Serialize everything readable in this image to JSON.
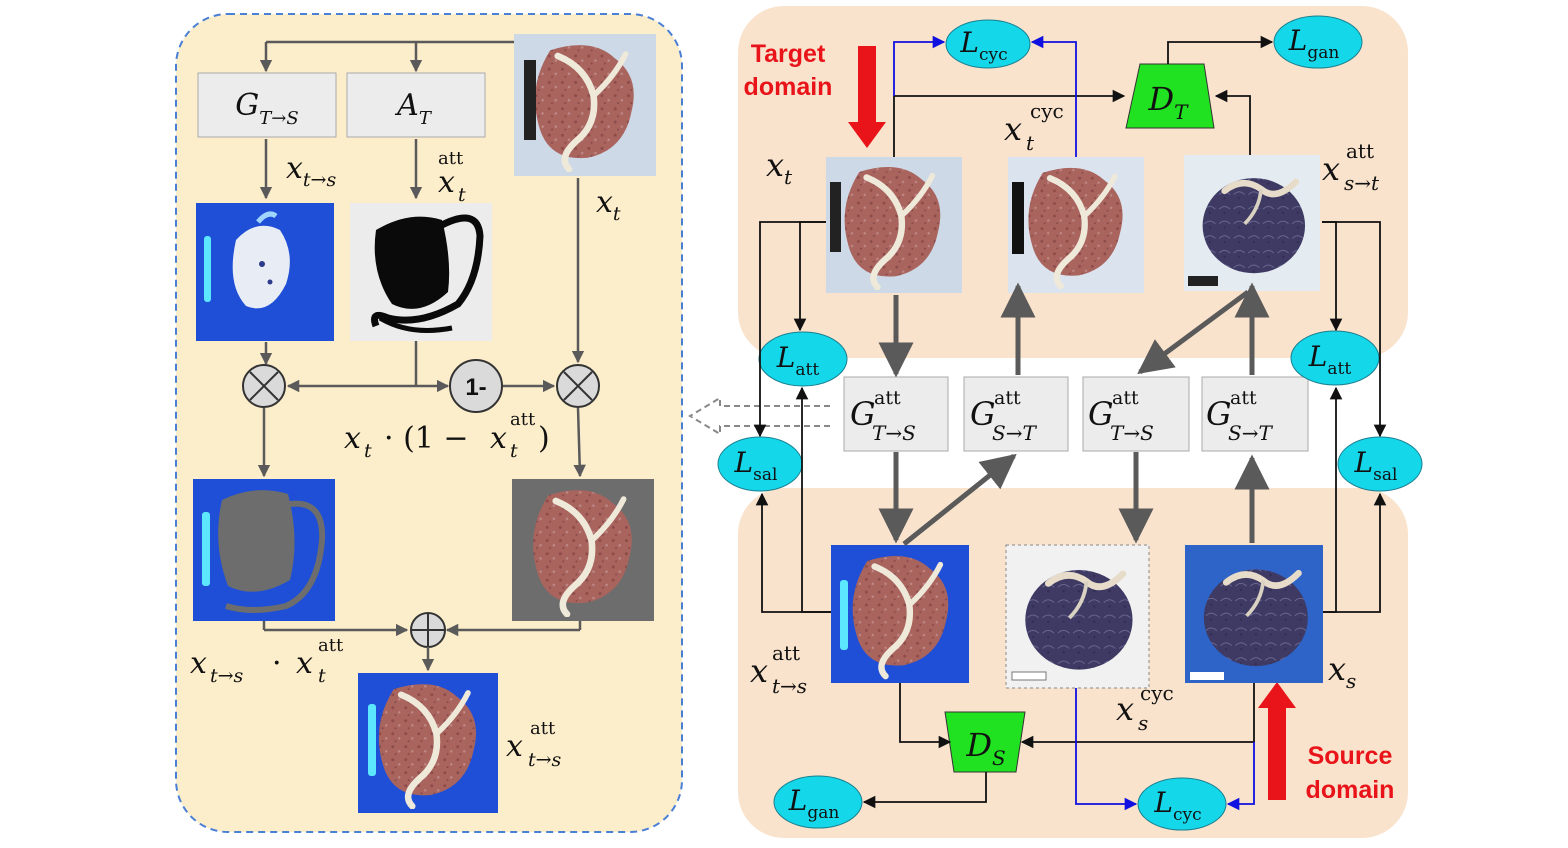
{
  "left_panel": {
    "gen_box": {
      "base": "G",
      "sub": "T→S"
    },
    "att_box": {
      "base": "A",
      "sub": "T"
    },
    "one_minus": "1-",
    "labels": {
      "x_t_to_s": {
        "base": "x",
        "sub": "t→s"
      },
      "x_t_att": {
        "base": "x",
        "sub": "t",
        "sup": "att"
      },
      "x_t": {
        "base": "x",
        "sub": "t"
      },
      "mask_complement": {
        "base": "x",
        "sub": "t",
        "mid": "· (1 −",
        "base2": "x",
        "sub2": "t",
        "sup2": "att",
        "end": ")"
      },
      "masked_translation": {
        "base": "x",
        "sub": "t→s",
        "mid": "·",
        "base2": "x",
        "sub2": "t",
        "sup2": "att"
      },
      "output": {
        "base": "x",
        "sub": "t→s",
        "sup": "att"
      }
    },
    "operators": {
      "multiply": "⊗",
      "add": "⊕"
    }
  },
  "right_panel": {
    "target_domain": {
      "line1": "Target",
      "line2": "domain"
    },
    "source_domain": {
      "line1": "Source",
      "line2": "domain"
    },
    "losses": {
      "cyc_top": {
        "base": "L",
        "sub": "cyc"
      },
      "gan_top": {
        "base": "L",
        "sub": "gan"
      },
      "att_left": {
        "base": "L",
        "sub": "att"
      },
      "att_right": {
        "base": "L",
        "sub": "att"
      },
      "sal_left": {
        "base": "L",
        "sub": "sal"
      },
      "sal_right": {
        "base": "L",
        "sub": "sal"
      },
      "gan_bottom": {
        "base": "L",
        "sub": "gan"
      },
      "cyc_bottom": {
        "base": "L",
        "sub": "cyc"
      }
    },
    "discriminators": {
      "top": {
        "base": "D",
        "sub": "T"
      },
      "bottom": {
        "base": "D",
        "sub": "S"
      }
    },
    "generators": [
      {
        "base": "G",
        "sup": "att",
        "sub": "T→S"
      },
      {
        "base": "G",
        "sup": "att",
        "sub": "S→T"
      },
      {
        "base": "G",
        "sup": "att",
        "sub": "T→S"
      },
      {
        "base": "G",
        "sup": "att",
        "sub": "S→T"
      }
    ],
    "image_labels": {
      "x_t": {
        "base": "x",
        "sub": "t"
      },
      "x_t_cyc": {
        "base": "x",
        "sub": "t",
        "sup": "cyc"
      },
      "x_s_to_t_att": {
        "base": "x",
        "sub": "s→t",
        "sup": "att"
      },
      "x_t_to_s_att": {
        "base": "x",
        "sub": "t→s",
        "sup": "att"
      },
      "x_s_cyc": {
        "base": "x",
        "sub": "s",
        "sup": "cyc"
      },
      "x_s": {
        "base": "x",
        "sub": "s"
      }
    }
  },
  "colors": {
    "left_panel_bg": "#fdeecb",
    "left_panel_border": "#4a7fd6",
    "domain_bg": "#fae3cc",
    "loss_fill": "#14d7ea",
    "disc_fill": "#21e221",
    "gen_fill": "#ececec",
    "arrow_gray": "#5a5a5a",
    "arrow_blue": "#1010e0",
    "domain_arrow": "#e8141a"
  }
}
